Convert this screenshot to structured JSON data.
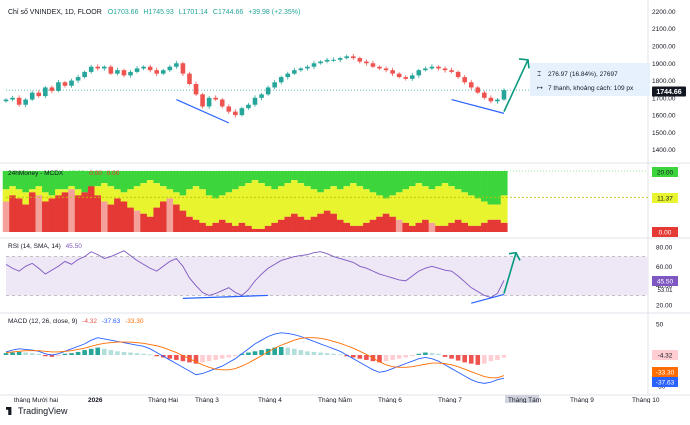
{
  "price_panel": {
    "header": {
      "symbol_name": "Chỉ số VNINDEX",
      "interval": "1D",
      "exchange": "FLOOR",
      "o": "O1703.66",
      "h": "H1745.93",
      "l": "L1701.14",
      "c": "C1744.66",
      "change": "+39.98 (+2.35%)"
    },
    "last_price_label": "1744.66",
    "measure_line1": "276.97 (16.84%), 27697",
    "measure_line2": "7 thanh, khoảng cách: 109 px",
    "colors": {
      "up": "#26a69a",
      "down": "#ef5350",
      "trendline": "#2962ff",
      "arrow": "#089981",
      "measure_bg": "#e3effd",
      "last_price_bg": "#26a69a"
    }
  },
  "money_panel": {
    "title": "24hMoney - MCDX",
    "header_values": [
      "20.00",
      "0.00",
      "0.00"
    ],
    "level_labels": [
      "20.00",
      "11.37",
      "0.00"
    ],
    "colors": {
      "green": "#3cd63c",
      "yellow": "#e8f52e",
      "red": "#e53935",
      "pink": "#f4a19b"
    }
  },
  "rsi_panel": {
    "title": "RSI (14, SMA, 14)",
    "value": "45.50",
    "second_value": "53.01",
    "colors": {
      "line": "#7e57c2",
      "band": "#ede7f6"
    }
  },
  "macd_panel": {
    "title": "MACD (12, 26, close, 9)",
    "hist_value": "-4.32",
    "macd_value": "-37.63",
    "signal_value": "-33.30",
    "colors": {
      "macd": "#2962ff",
      "signal": "#ff6d00",
      "hist_up": "#26a69a",
      "hist_down": "#ef5350",
      "hist_up_light": "#b2dfdb",
      "hist_down_light": "#ffcdd2"
    }
  },
  "time_axis": {
    "labels": [
      "tháng Mười hai",
      "2026",
      "Tháng Hai",
      "Tháng 3",
      "Tháng 4",
      "Tháng Năm",
      "Tháng 6",
      "Tháng 7",
      "Tháng Tám",
      "Tháng 9",
      "Tháng 10"
    ],
    "highlighted": "Tháng Tám"
  },
  "branding": {
    "logo_text": "TradingView"
  },
  "chart_data": [
    {
      "type": "candlestick",
      "title": "Chỉ số VNINDEX, 1D, FLOOR",
      "y_ticks": [
        1400,
        1500,
        1600,
        1700,
        1800,
        1900,
        2000,
        2100,
        2200
      ],
      "ylim": [
        1340,
        2220
      ],
      "last_close": 1744.66,
      "close_path": [
        1690,
        1700,
        1660,
        1690,
        1730,
        1710,
        1760,
        1740,
        1790,
        1770,
        1800,
        1820,
        1850,
        1880,
        1870,
        1880,
        1840,
        1860,
        1830,
        1850,
        1870,
        1880,
        1860,
        1840,
        1860,
        1880,
        1900,
        1840,
        1780,
        1720,
        1650,
        1700,
        1690,
        1650,
        1620,
        1600,
        1640,
        1660,
        1700,
        1720,
        1760,
        1790,
        1820,
        1840,
        1860,
        1870,
        1880,
        1900,
        1910,
        1920,
        1920,
        1930,
        1940,
        1930,
        1910,
        1900,
        1880,
        1870,
        1860,
        1840,
        1820,
        1810,
        1830,
        1860,
        1870,
        1880,
        1870,
        1860,
        1850,
        1820,
        1790,
        1760,
        1730,
        1700,
        1680,
        1690,
        1744.66
      ]
    },
    {
      "type": "area",
      "title": "24hMoney - MCDX",
      "ylim": [
        0,
        20
      ],
      "level_lines": [
        20,
        11.37,
        0
      ],
      "green_bottom": [
        14,
        15,
        14,
        13,
        14,
        15,
        13,
        12,
        14,
        14,
        15,
        14,
        13,
        12,
        15,
        16,
        15,
        14,
        13,
        14,
        15,
        16,
        17,
        16,
        15,
        14,
        13,
        12,
        14,
        15,
        14,
        12,
        11,
        12,
        13,
        14,
        15,
        16,
        17,
        16,
        15,
        14,
        15,
        16,
        17,
        16,
        15,
        14,
        13,
        14,
        15,
        14,
        15,
        16,
        15,
        14,
        13,
        12,
        11,
        12,
        13,
        14,
        15,
        16,
        15,
        14,
        15,
        16,
        15,
        14,
        13,
        12,
        11,
        10,
        9,
        9,
        12
      ],
      "red_top": [
        10,
        12,
        11,
        9,
        13,
        12,
        10,
        11,
        12,
        13,
        14,
        12,
        13,
        15,
        12,
        10,
        9,
        11,
        10,
        8,
        7,
        6,
        5,
        8,
        10,
        11,
        9,
        7,
        5,
        4,
        3,
        2,
        3,
        4,
        3,
        2,
        3,
        2,
        1,
        1,
        2,
        3,
        4,
        5,
        6,
        5,
        4,
        5,
        6,
        7,
        6,
        4,
        3,
        2,
        2,
        3,
        4,
        5,
        6,
        5,
        4,
        3,
        2,
        3,
        4,
        3,
        2,
        2,
        3,
        4,
        3,
        2,
        2,
        3,
        4,
        4,
        3
      ]
    },
    {
      "type": "line",
      "title": "RSI (14, SMA, 14)",
      "y_ticks": [
        20,
        40,
        60,
        80
      ],
      "ylim": [
        15,
        85
      ],
      "band": [
        30,
        70
      ],
      "rsi": [
        62,
        58,
        55,
        60,
        63,
        58,
        52,
        56,
        60,
        65,
        62,
        67,
        70,
        75,
        72,
        68,
        70,
        73,
        76,
        71,
        66,
        62,
        58,
        55,
        60,
        65,
        68,
        60,
        48,
        40,
        33,
        30,
        32,
        35,
        38,
        33,
        30,
        36,
        45,
        52,
        58,
        62,
        66,
        68,
        70,
        71,
        72,
        74,
        75,
        73,
        70,
        68,
        66,
        64,
        60,
        58,
        55,
        52,
        50,
        48,
        46,
        45,
        50,
        55,
        58,
        60,
        58,
        56,
        55,
        50,
        44,
        38,
        34,
        30,
        28,
        32,
        45.5
      ],
      "rsi_sma_last": 53.01
    },
    {
      "type": "bar",
      "title": "MACD (12, 26, close, 9)",
      "y_ticks": [
        -50,
        0,
        50
      ],
      "ylim": [
        -60,
        60
      ],
      "histogram": [
        3,
        4,
        5,
        4,
        3,
        2,
        -2,
        -3,
        -2,
        2,
        3,
        5,
        8,
        10,
        12,
        10,
        8,
        6,
        5,
        4,
        3,
        2,
        1,
        -2,
        -4,
        -6,
        -8,
        -10,
        -12,
        -14,
        -12,
        -10,
        -8,
        -6,
        -4,
        -2,
        2,
        4,
        6,
        8,
        10,
        12,
        13,
        12,
        10,
        8,
        6,
        5,
        4,
        3,
        2,
        1,
        -2,
        -4,
        -6,
        -8,
        -10,
        -12,
        -10,
        -8,
        -6,
        -4,
        -2,
        2,
        4,
        3,
        2,
        -3,
        -6,
        -9,
        -12,
        -14,
        -16,
        -14,
        -10,
        -8,
        -4.32
      ],
      "macd": [
        5,
        8,
        10,
        9,
        8,
        6,
        2,
        0,
        2,
        6,
        10,
        14,
        18,
        24,
        28,
        26,
        24,
        22,
        20,
        18,
        16,
        14,
        10,
        4,
        -2,
        -8,
        -14,
        -20,
        -26,
        -32,
        -30,
        -26,
        -22,
        -18,
        -12,
        -6,
        2,
        10,
        18,
        24,
        30,
        34,
        36,
        35,
        33,
        30,
        26,
        22,
        18,
        14,
        10,
        6,
        0,
        -6,
        -12,
        -18,
        -24,
        -28,
        -26,
        -22,
        -18,
        -14,
        -10,
        -6,
        -4,
        -6,
        -10,
        -16,
        -22,
        -28,
        -34,
        -40,
        -44,
        -46,
        -44,
        -40,
        -37.63
      ],
      "signal": [
        4,
        5,
        6,
        7,
        7,
        7,
        6,
        5,
        5,
        6,
        7,
        9,
        11,
        14,
        17,
        19,
        20,
        21,
        21,
        21,
        20,
        19,
        17,
        15,
        12,
        8,
        4,
        -1,
        -6,
        -11,
        -16,
        -20,
        -23,
        -24,
        -24,
        -22,
        -18,
        -13,
        -7,
        -1,
        5,
        11,
        16,
        20,
        24,
        27,
        28,
        28,
        27,
        25,
        22,
        19,
        15,
        11,
        6,
        1,
        -5,
        -11,
        -16,
        -19,
        -20,
        -20,
        -19,
        -17,
        -15,
        -13,
        -13,
        -14,
        -16,
        -19,
        -23,
        -27,
        -31,
        -35,
        -37,
        -37,
        -33.3
      ]
    }
  ]
}
